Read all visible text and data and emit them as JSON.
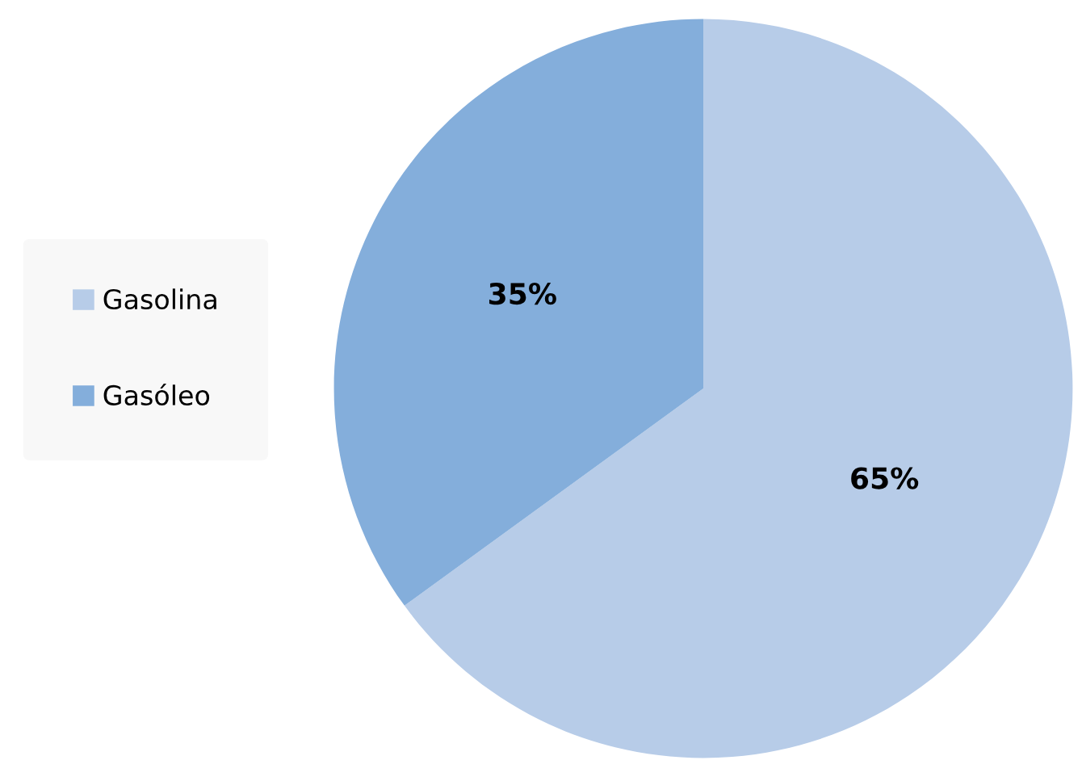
{
  "chart_data": {
    "type": "pie",
    "categories": [
      "Gasolina",
      "Gasóleo"
    ],
    "values": [
      65,
      35
    ],
    "colors": [
      "#b7cce8",
      "#84aedb"
    ],
    "value_labels": [
      "65%",
      "35%"
    ],
    "legend": "left"
  }
}
